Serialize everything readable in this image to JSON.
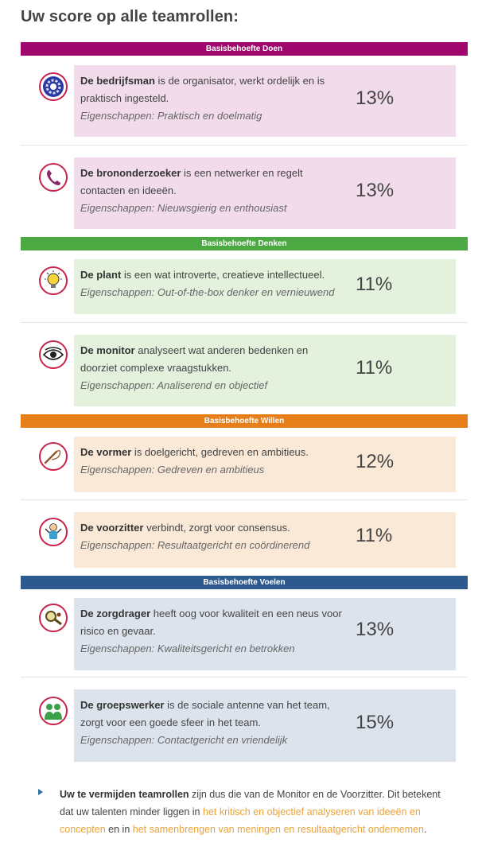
{
  "title": "Uw score op alle teamrollen:",
  "colors": {
    "doen": "#a0076d",
    "denken": "#4ca843",
    "willen": "#e67e1a",
    "voelen": "#2d5a8e",
    "box_doen": "#f2dcec",
    "box_denken": "#e3f1dd",
    "box_willen": "#fbe9d7",
    "box_voelen": "#dde3ed",
    "icon_ring": "#c8234b",
    "highlight": "#e8a33a"
  },
  "sections": [
    {
      "header": "Basisbehoefte Doen",
      "roles": [
        {
          "name": "De bedrijfsman",
          "desc": " is de organisator, werkt ordelijk en is praktisch ingesteld.",
          "props": "Eigenschappen: Praktisch en doelmatig",
          "pct": "13%",
          "icon": "gear-icon"
        },
        {
          "name": "De brononderzoeker",
          "desc": " is een netwerker en regelt contacten en ideeën.",
          "props": "Eigenschappen: Nieuwsgierig en enthousiast",
          "pct": "13%",
          "icon": "phone-icon"
        }
      ]
    },
    {
      "header": "Basisbehoefte Denken",
      "roles": [
        {
          "name": "De plant",
          "desc": " is een wat introverte, creatieve intellectueel.",
          "props": "Eigenschappen: Out-of-the-box denker en vernieuwend",
          "pct": "11%",
          "icon": "lightbulb-icon"
        },
        {
          "name": "De monitor",
          "desc": " analyseert wat anderen bedenken en doorziet complexe vraagstukken.",
          "props": "Eigenschappen: Analiserend en objectief",
          "pct": "11%",
          "icon": "eye-icon"
        }
      ]
    },
    {
      "header": "Basisbehoefte Willen",
      "roles": [
        {
          "name": "De vormer",
          "desc": " is doelgericht, gedreven en ambitieus.",
          "props": "Eigenschappen: Gedreven en ambitieus",
          "pct": "12%",
          "icon": "whip-icon"
        },
        {
          "name": "De voorzitter",
          "desc": " verbindt, zorgt voor consensus.",
          "props": "Eigenschappen: Resultaatgericht en coördinerend",
          "pct": "11%",
          "icon": "person-icon"
        }
      ]
    },
    {
      "header": "Basisbehoefte Voelen",
      "roles": [
        {
          "name": "De zorgdrager",
          "desc": " heeft oog voor kwaliteit en een neus voor risico en gevaar.",
          "props": "Eigenschappen: Kwaliteitsgericht en betrokken",
          "pct": "13%",
          "icon": "magnifier-icon"
        },
        {
          "name": "De groepswerker",
          "desc": " is de sociale antenne van het team, zorgt voor een goede sfeer in het team.",
          "props": "Eigenschappen: Contactgericht en vriendelijk",
          "pct": "15%",
          "icon": "group-icon"
        }
      ]
    }
  ],
  "footer": {
    "bold": "Uw te vermijden teamrollen",
    "text1": " zijn dus die van de Monitor en de Voorzitter. Dit betekent dat uw talenten minder liggen in ",
    "hl1": "het kritisch en objectief analyseren van ideeën en concepten",
    "text2": " en in ",
    "hl2": "het samenbrengen van meningen en resultaatgericht ondernemen",
    "text3": "."
  }
}
